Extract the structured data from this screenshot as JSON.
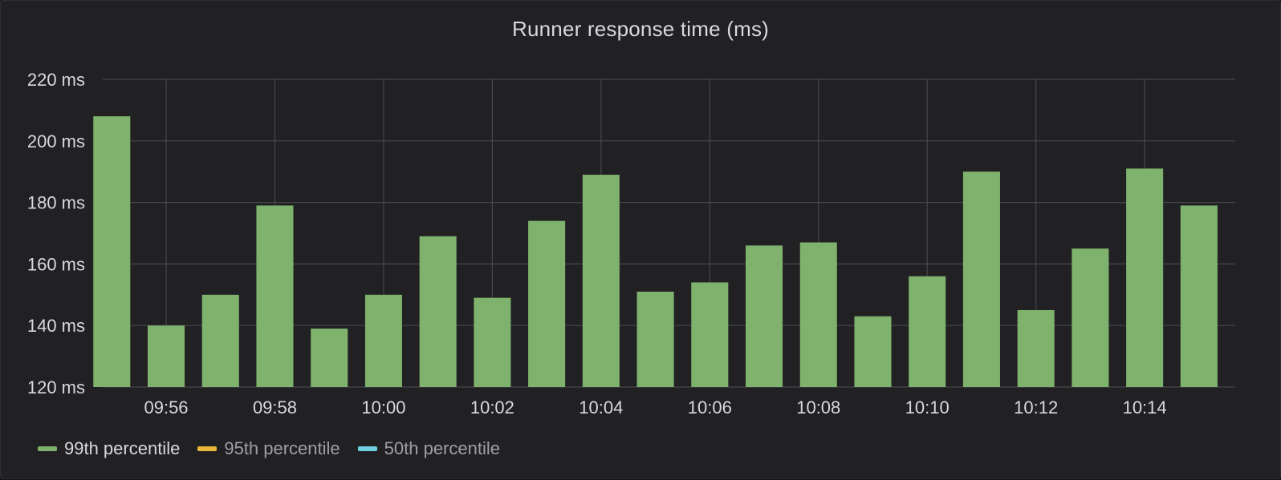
{
  "panel": {
    "title": "Runner response time (ms)"
  },
  "legend": [
    {
      "label": "99th percentile",
      "color": "#7eb26d",
      "active": true
    },
    {
      "label": "95th percentile",
      "color": "#eab839",
      "active": false
    },
    {
      "label": "50th percentile",
      "color": "#6ed0e0",
      "active": false
    }
  ],
  "chart_data": {
    "type": "bar",
    "title": "Runner response time (ms)",
    "ylabel": "",
    "xlabel": "",
    "ylim": [
      120,
      220
    ],
    "y_ticks": [
      "120 ms",
      "140 ms",
      "160 ms",
      "180 ms",
      "200 ms",
      "220 ms"
    ],
    "y_tick_values": [
      120,
      140,
      160,
      180,
      200,
      220
    ],
    "x_ticks": [
      "09:56",
      "09:58",
      "10:00",
      "10:02",
      "10:04",
      "10:06",
      "10:08",
      "10:10",
      "10:12",
      "10:14"
    ],
    "x_range": [
      "09:54:50",
      "10:15:40"
    ],
    "grid": true,
    "legend_position": "bottom-left",
    "bar_color": "#7eb26d",
    "series": [
      {
        "name": "99th percentile",
        "x": [
          "09:55",
          "09:56",
          "09:57",
          "09:58",
          "09:59",
          "10:00",
          "10:01",
          "10:02",
          "10:03",
          "10:04",
          "10:05",
          "10:06",
          "10:07",
          "10:08",
          "10:09",
          "10:10",
          "10:11",
          "10:12",
          "10:13",
          "10:14",
          "10:15"
        ],
        "values": [
          208,
          140,
          150,
          179,
          139,
          150,
          169,
          149,
          174,
          189,
          151,
          154,
          166,
          167,
          143,
          156,
          190,
          145,
          165,
          191,
          179
        ]
      },
      {
        "name": "95th percentile",
        "x": [],
        "values": []
      },
      {
        "name": "50th percentile",
        "x": [],
        "values": []
      }
    ]
  }
}
